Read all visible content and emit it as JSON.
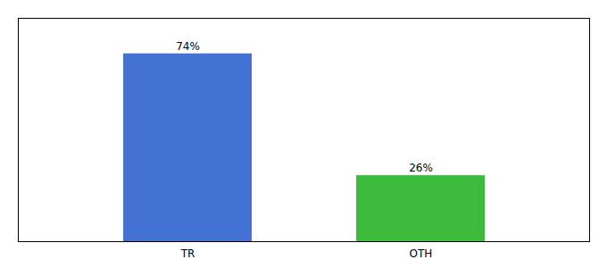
{
  "chart_data": {
    "type": "bar",
    "categories": [
      "TR",
      "OTH"
    ],
    "values": [
      74,
      26
    ],
    "value_labels": [
      "74%",
      "26%"
    ],
    "colors": [
      "#4472d4",
      "#3dbb3d"
    ],
    "ylim": [
      0,
      88
    ],
    "data_labels": true,
    "tick_labels": "x"
  }
}
